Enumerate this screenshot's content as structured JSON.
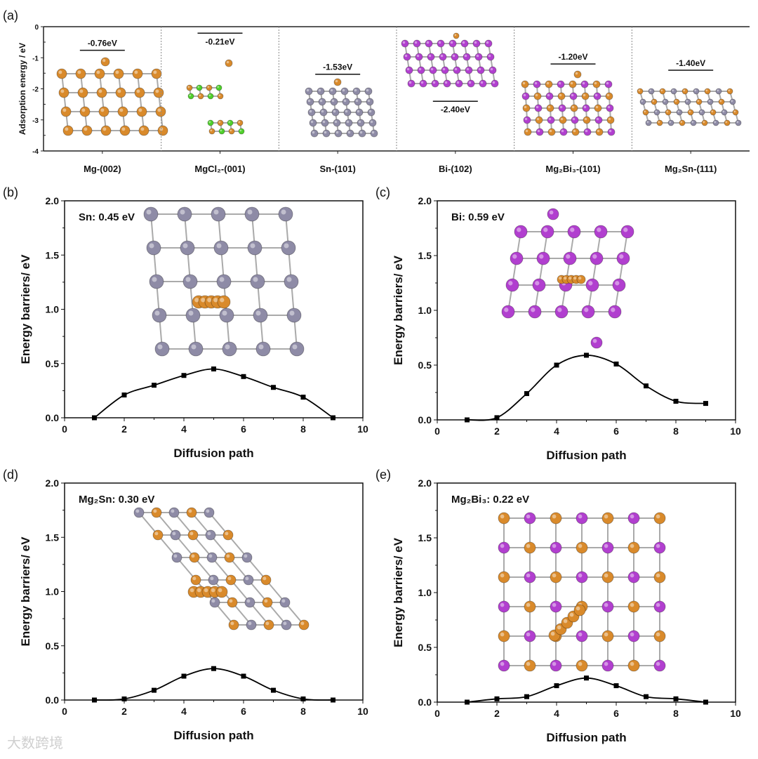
{
  "watermark": "大数跨境",
  "colors": {
    "mg": "#d98a2b",
    "sn": "#8e8ba6",
    "bi": "#b13fcf",
    "cl": "#4fcf2b",
    "line": "#000000"
  },
  "chart_data": [
    {
      "panel": "(a)",
      "type": "bar-level",
      "ylabel": "Adsorption energy / eV",
      "ylim": [
        -4,
        0
      ],
      "yticks": [
        "0",
        "-1",
        "-2",
        "-3",
        "-4"
      ],
      "categories": [
        "Mg-(002)",
        "MgCl₂-(001)",
        "Sn-(101)",
        "Bi-(102)",
        "Mg₂Bi₃-(101)",
        "Mg₂Sn-(111)"
      ],
      "values": [
        -0.76,
        -0.21,
        -1.53,
        -2.4,
        -1.2,
        -1.4
      ],
      "labels": [
        "-0.76eV",
        "-0.21eV",
        "-1.53eV",
        "-2.40eV",
        "-1.20eV",
        "-1.40eV"
      ]
    },
    {
      "panel": "(b)",
      "type": "line",
      "annotation": "Sn: 0.45 eV",
      "xlabel": "Diffusion path",
      "ylabel": "Energy barriers/ eV",
      "xlim": [
        0,
        10
      ],
      "ylim": [
        0,
        2.0
      ],
      "xticks": [
        "0",
        "2",
        "4",
        "6",
        "8",
        "10"
      ],
      "yticks": [
        "0.0",
        "0.5",
        "1.0",
        "1.5",
        "2.0"
      ],
      "x": [
        1,
        2,
        3,
        4,
        5,
        6,
        7,
        8,
        9
      ],
      "y": [
        0.0,
        0.21,
        0.3,
        0.39,
        0.45,
        0.38,
        0.28,
        0.19,
        0.0
      ]
    },
    {
      "panel": "(c)",
      "type": "line",
      "annotation": "Bi: 0.59 eV",
      "xlabel": "Diffusion path",
      "ylabel": "Energy barriers/ eV",
      "xlim": [
        0,
        10
      ],
      "ylim": [
        0,
        2.0
      ],
      "xticks": [
        "0",
        "2",
        "4",
        "6",
        "8",
        "10"
      ],
      "yticks": [
        "0.0",
        "0.5",
        "1.0",
        "1.5",
        "2.0"
      ],
      "x": [
        1,
        2,
        3,
        4,
        5,
        6,
        7,
        8,
        9
      ],
      "y": [
        0.0,
        0.02,
        0.24,
        0.5,
        0.59,
        0.51,
        0.31,
        0.17,
        0.15
      ]
    },
    {
      "panel": "(d)",
      "type": "line",
      "annotation": "Mg₂Sn: 0.30 eV",
      "xlabel": "Diffusion path",
      "ylabel": "Energy barriers/ eV",
      "xlim": [
        0,
        10
      ],
      "ylim": [
        0,
        2.0
      ],
      "xticks": [
        "0",
        "2",
        "4",
        "6",
        "8",
        "10"
      ],
      "yticks": [
        "0.0",
        "0.5",
        "1.0",
        "1.5",
        "2.0"
      ],
      "x": [
        1,
        2,
        3,
        4,
        5,
        6,
        7,
        8,
        9
      ],
      "y": [
        0.0,
        0.01,
        0.09,
        0.22,
        0.29,
        0.22,
        0.09,
        0.01,
        0.0
      ]
    },
    {
      "panel": "(e)",
      "type": "line",
      "annotation": "Mg₂Bi₃: 0.22 eV",
      "xlabel": "Diffusion path",
      "ylabel": "Energy barriers/ eV",
      "xlim": [
        0,
        10
      ],
      "ylim": [
        0,
        2.0
      ],
      "xticks": [
        "0",
        "2",
        "4",
        "6",
        "8",
        "10"
      ],
      "yticks": [
        "0.0",
        "0.5",
        "1.0",
        "1.5",
        "2.0"
      ],
      "x": [
        1,
        2,
        3,
        4,
        5,
        6,
        7,
        8,
        9
      ],
      "y": [
        0.0,
        0.03,
        0.05,
        0.15,
        0.22,
        0.15,
        0.05,
        0.03,
        0.0
      ]
    }
  ]
}
